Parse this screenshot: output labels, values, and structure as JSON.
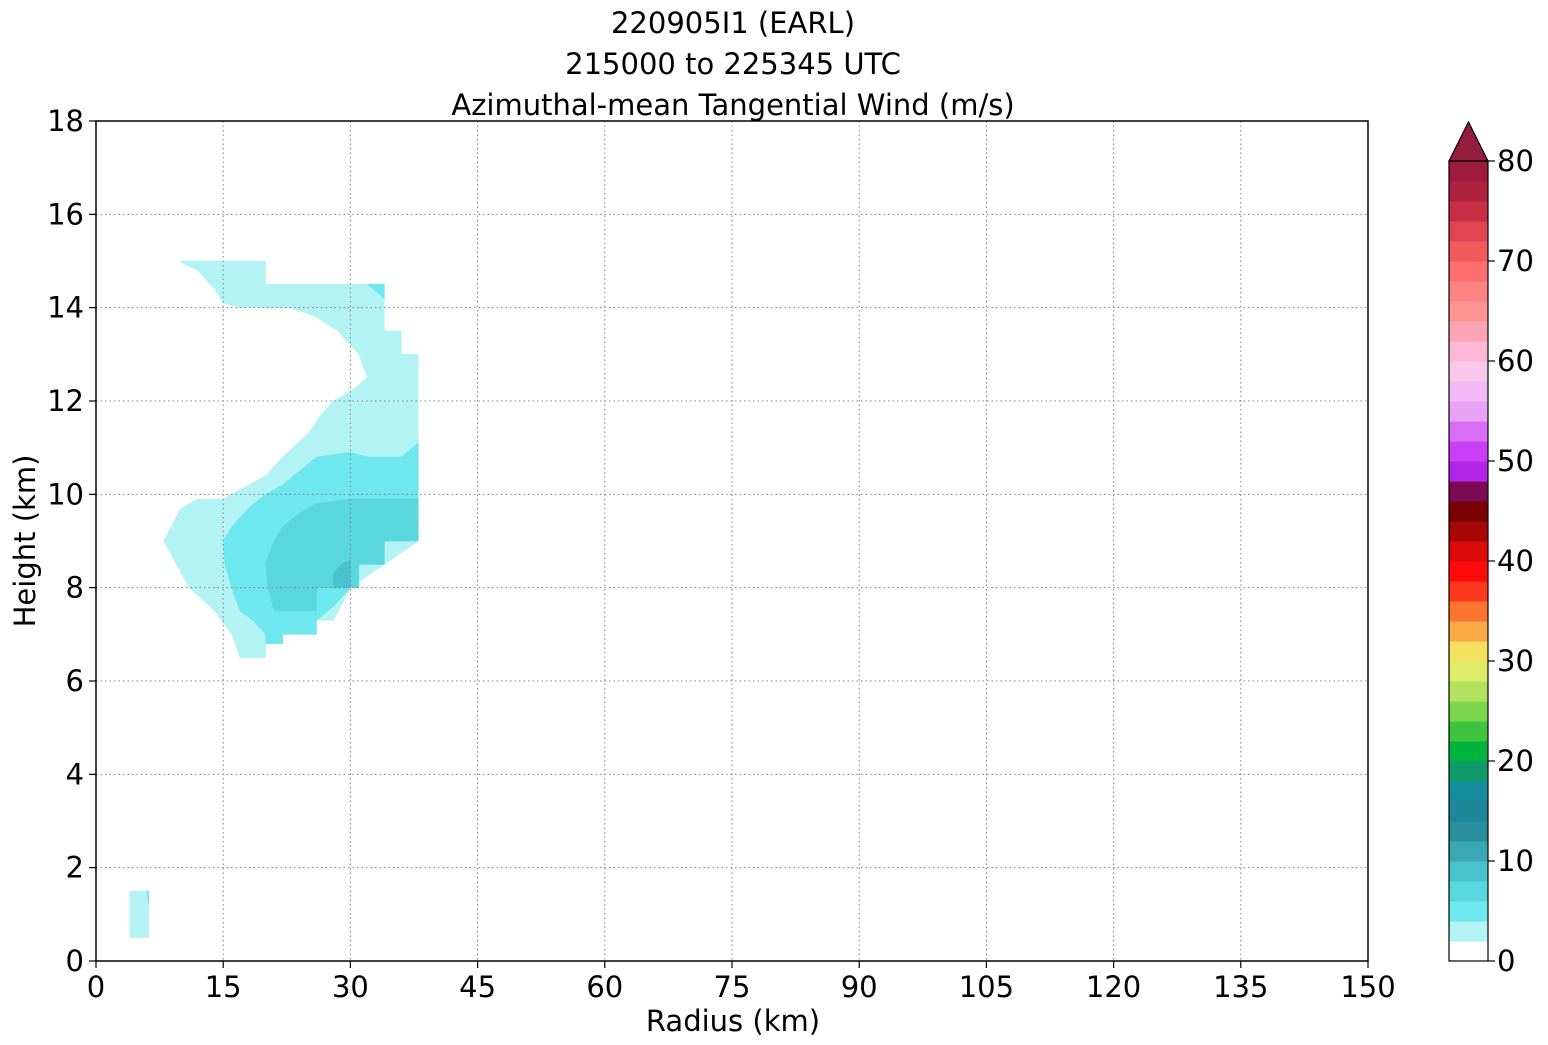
{
  "chart_data": {
    "type": "contourf",
    "title_lines": [
      "220905I1 (EARL)",
      "215000 to 225345 UTC",
      "Azimuthal-mean Tangential Wind (m/s)"
    ],
    "xlabel": "Radius (km)",
    "ylabel": "Height (km)",
    "xlim": [
      0,
      150
    ],
    "ylim": [
      0,
      18
    ],
    "xticks": [
      0,
      15,
      30,
      45,
      60,
      75,
      90,
      105,
      120,
      135,
      150
    ],
    "yticks": [
      0,
      2,
      4,
      6,
      8,
      10,
      12,
      14,
      16,
      18
    ],
    "grid": true,
    "colorbar": {
      "min": 0,
      "max": 80,
      "step": 2,
      "extend": "max",
      "ticks": [
        0,
        10,
        20,
        30,
        40,
        50,
        60,
        70,
        80
      ],
      "colors": [
        "#ffffff",
        "#b3f3f4",
        "#6fe7ee",
        "#5ad6df",
        "#48c2cc",
        "#3aa8b4",
        "#2a8f9c",
        "#1e8799",
        "#168c9f",
        "#0f9a6b",
        "#00b33c",
        "#3fc440",
        "#7ad54d",
        "#b3e35e",
        "#dded69",
        "#f5e060",
        "#fbaa48",
        "#fc7530",
        "#fd3a1e",
        "#fd0a0a",
        "#dd0a0a",
        "#a80505",
        "#780000",
        "#7a0a52",
        "#b225e9",
        "#c73ef5",
        "#d96ef6",
        "#e8a2f6",
        "#f2b9f6",
        "#f9c6ec",
        "#fdb8d4",
        "#fda4b4",
        "#fe9494",
        "#fe8484",
        "#fd6f6f",
        "#f15a5a",
        "#df4552",
        "#c82e44",
        "#ae223f",
        "#9c1b3e"
      ],
      "extend_color": "#941c3f"
    },
    "regions": [
      {
        "level": "2-4",
        "color": "#b3f3f4",
        "points": [
          [
            9.8,
            15
          ],
          [
            20,
            15
          ],
          [
            20,
            14.5
          ],
          [
            34,
            14.5
          ],
          [
            34,
            13.5
          ],
          [
            36,
            13.5
          ],
          [
            36,
            13
          ],
          [
            38,
            13
          ],
          [
            38,
            9
          ],
          [
            30,
            8
          ],
          [
            28,
            7.3
          ],
          [
            22,
            7.3
          ],
          [
            22,
            7
          ],
          [
            20,
            7
          ],
          [
            20,
            6.5
          ],
          [
            17,
            6.5
          ],
          [
            16,
            7
          ],
          [
            14,
            7.5
          ],
          [
            11,
            8
          ],
          [
            8,
            9
          ],
          [
            10,
            9.7
          ],
          [
            12,
            9.9
          ],
          [
            15,
            9.9
          ],
          [
            20,
            10.4
          ],
          [
            22,
            10.8
          ],
          [
            25,
            11.3
          ],
          [
            26.5,
            11.7
          ],
          [
            28,
            12
          ],
          [
            30,
            12.2
          ],
          [
            32,
            12.5
          ],
          [
            31,
            13
          ],
          [
            28.5,
            13.5
          ],
          [
            26,
            13.8
          ],
          [
            23,
            14
          ],
          [
            20,
            14
          ],
          [
            17,
            14
          ],
          [
            15,
            14.1
          ],
          [
            14,
            14.4
          ],
          [
            12,
            14.8
          ],
          [
            10.8,
            14.9
          ],
          [
            9.8,
            15
          ]
        ]
      },
      {
        "level": "2-4",
        "color": "#b3f3f4",
        "points": [
          [
            4,
            0.5
          ],
          [
            6.2,
            0.5
          ],
          [
            6.2,
            1.5
          ],
          [
            4,
            1.5
          ]
        ]
      },
      {
        "level": "4-6",
        "color": "#6fe7ee",
        "points": [
          [
            15,
            9
          ],
          [
            16,
            9.3
          ],
          [
            18,
            9.7
          ],
          [
            20,
            10
          ],
          [
            22,
            10.2
          ],
          [
            24,
            10.5
          ],
          [
            26,
            10.8
          ],
          [
            30,
            10.9
          ],
          [
            32,
            10.8
          ],
          [
            36,
            10.8
          ],
          [
            38,
            11.1
          ],
          [
            38,
            9
          ],
          [
            34,
            9
          ],
          [
            34,
            8.5
          ],
          [
            31,
            8.5
          ],
          [
            30,
            8
          ],
          [
            28,
            7.6
          ],
          [
            26,
            7.3
          ],
          [
            26,
            7
          ],
          [
            22,
            7
          ],
          [
            22,
            6.8
          ],
          [
            20,
            6.8
          ],
          [
            20,
            7
          ],
          [
            18.5,
            7.3
          ],
          [
            17,
            7.5
          ],
          [
            16,
            8
          ],
          [
            15.2,
            8.5
          ],
          [
            15,
            9
          ]
        ]
      },
      {
        "level": "4-6",
        "color": "#6fe7ee",
        "points": [
          [
            32,
            14.5
          ],
          [
            34,
            14.5
          ],
          [
            34,
            14.2
          ]
        ]
      },
      {
        "level": "4-6",
        "color": "#6fe7ee",
        "points": [
          [
            6,
            1.5
          ],
          [
            6.2,
            1.5
          ],
          [
            6.2,
            1.2
          ]
        ]
      },
      {
        "level": "6-8",
        "color": "#5ad6df",
        "points": [
          [
            20,
            8.5
          ],
          [
            21,
            9
          ],
          [
            22,
            9.3
          ],
          [
            24,
            9.6
          ],
          [
            26,
            9.8
          ],
          [
            30,
            9.9
          ],
          [
            34,
            9.9
          ],
          [
            38,
            9.9
          ],
          [
            38,
            9
          ],
          [
            34,
            9
          ],
          [
            34,
            8.5
          ],
          [
            31,
            8.5
          ],
          [
            31,
            8
          ],
          [
            26,
            8
          ],
          [
            26,
            7.5
          ],
          [
            21,
            7.5
          ],
          [
            20.3,
            8
          ],
          [
            20,
            8.5
          ]
        ]
      },
      {
        "level": "8-10",
        "color": "#48c2cc",
        "points": [
          [
            28,
            8
          ],
          [
            30,
            8
          ],
          [
            30,
            8.6
          ],
          [
            29,
            8.5
          ],
          [
            28,
            8.3
          ]
        ]
      }
    ]
  }
}
